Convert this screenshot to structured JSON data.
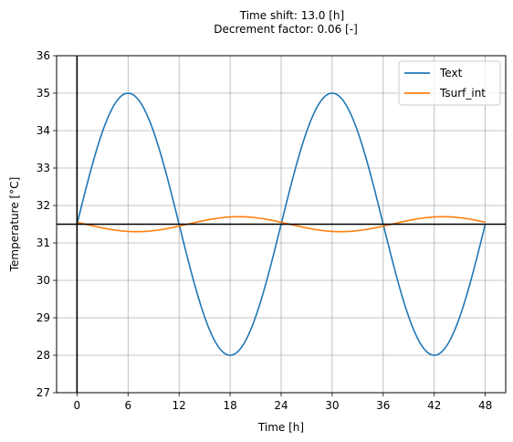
{
  "chart_data": {
    "type": "line",
    "title_line1": "Time shift:  13.0 [h]",
    "title_line2": "Decrement factor: 0.06 [-]",
    "xlabel": "Time [h]",
    "ylabel": "Temperature [°C]",
    "xlim": [
      -2.4,
      50.4
    ],
    "ylim": [
      27,
      36
    ],
    "xticks": [
      0,
      6,
      12,
      18,
      24,
      30,
      36,
      42,
      48
    ],
    "yticks": [
      27,
      28,
      29,
      30,
      31,
      32,
      33,
      34,
      35,
      36
    ],
    "grid": true,
    "legend_position": "top-right",
    "reference_lines": {
      "vertical_x": 0,
      "horizontal_y": 31.5
    },
    "series": [
      {
        "name": "Text",
        "color": "#1f77b4",
        "function": "sine",
        "mean": 31.5,
        "amplitude": 3.5,
        "period": 24,
        "phase_shift_h": 0,
        "x_range": [
          0,
          48
        ]
      },
      {
        "name": "Tsurf_int",
        "color": "#ff7f0e",
        "function": "sine",
        "mean": 31.5,
        "amplitude": 0.2,
        "period": 24,
        "phase_shift_h": 13,
        "x_range": [
          0,
          48
        ]
      }
    ]
  }
}
